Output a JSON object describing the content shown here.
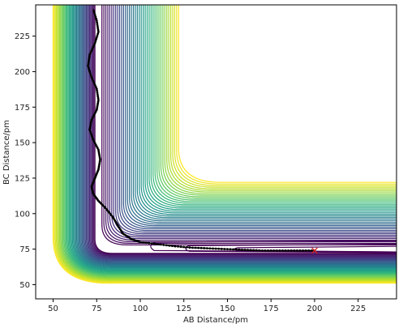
{
  "chart_data": {
    "type": "contour",
    "title": "",
    "xlabel": "AB Distance/pm",
    "ylabel": "BC Distance/pm",
    "xlim": [
      40,
      247
    ],
    "ylim": [
      40,
      247
    ],
    "xticks": [
      50,
      75,
      100,
      125,
      150,
      175,
      200,
      225
    ],
    "yticks": [
      50,
      75,
      100,
      125,
      150,
      175,
      200,
      225
    ],
    "grid": false,
    "colormap": [
      "#440154",
      "#482878",
      "#3e4a89",
      "#31688e",
      "#26828e",
      "#1f9e89",
      "#35b779",
      "#6ece58",
      "#b5de2b",
      "#fde725"
    ],
    "contour_count": 40,
    "trajectory": {
      "marker_color": "#000000",
      "points": [
        [
          200,
          74
        ],
        [
          190,
          74
        ],
        [
          180,
          74
        ],
        [
          170,
          74
        ],
        [
          160,
          74.5
        ],
        [
          150,
          75
        ],
        [
          140,
          75.5
        ],
        [
          130,
          76
        ],
        [
          120,
          77
        ],
        [
          110,
          78.5
        ],
        [
          100,
          80
        ],
        [
          95,
          82
        ],
        [
          90,
          86
        ],
        [
          87,
          92
        ],
        [
          84,
          98
        ],
        [
          80,
          104
        ],
        [
          76,
          109
        ],
        [
          73,
          114
        ],
        [
          72,
          119
        ],
        [
          74,
          125
        ],
        [
          76,
          131
        ],
        [
          77,
          138
        ],
        [
          76,
          145
        ],
        [
          73,
          152
        ],
        [
          71,
          159
        ],
        [
          72,
          166
        ],
        [
          75,
          173
        ],
        [
          76,
          180
        ],
        [
          75,
          188
        ],
        [
          72,
          196
        ],
        [
          70,
          204
        ],
        [
          71,
          212
        ],
        [
          74,
          220
        ],
        [
          76,
          228
        ],
        [
          75,
          236
        ],
        [
          73,
          244
        ]
      ]
    },
    "start_marker": {
      "x": 200,
      "y": 74,
      "symbol": "x",
      "color": "#d62728"
    }
  }
}
